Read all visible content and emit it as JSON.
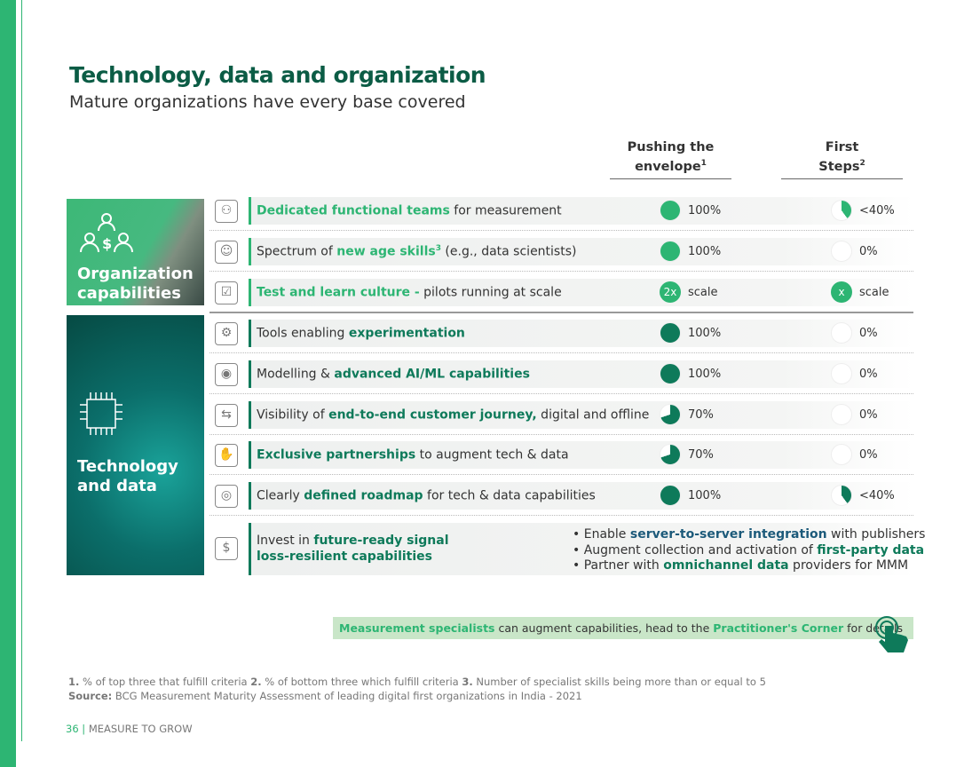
{
  "title": "Technology, data and organization",
  "subtitle": "Mature organizations have every base covered",
  "columns": {
    "col1": "Pushing the",
    "col1b": "envelope",
    "col1sup": "1",
    "col2": "First",
    "col2b": "Steps",
    "col2sup": "2"
  },
  "panels": {
    "org_1": "Organization",
    "org_2": "capabilities",
    "tech_1": "Technology",
    "tech_2": "and data"
  },
  "rows": [
    {
      "icon": "team-icon",
      "pre": "",
      "hl": "Dedicated functional teams",
      "post": " for measurement",
      "sup": "",
      "post2": "",
      "v1": "100%",
      "p1": 100,
      "v2": "<40%",
      "p2": 40,
      "section": "org"
    },
    {
      "icon": "brain-head-icon",
      "pre": "Spectrum of ",
      "hl": "new age skills",
      "sup": "3",
      "post": "",
      "post2": " (e.g., data scientists)",
      "v1": "100%",
      "p1": 100,
      "v2": "0%",
      "p2": 0,
      "section": "org"
    },
    {
      "icon": "clipboard-checklist-icon",
      "pre": "",
      "hl": "Test and learn culture -",
      "post": " pilots running at scale",
      "sup": "",
      "post2": "",
      "chip1": "2x",
      "v1": "scale",
      "chip2": "x",
      "v2": "scale",
      "section": "org"
    },
    {
      "icon": "experiment-gear-icon",
      "pre": "Tools enabling ",
      "hl": "experimentation",
      "post": "",
      "sup": "",
      "post2": "",
      "v1": "100%",
      "p1": 100,
      "v2": "0%",
      "p2": 0,
      "section": "tech"
    },
    {
      "icon": "eye-monitor-icon",
      "pre": "Modelling & ",
      "hl": "advanced AI/ML capabilities",
      "post": "",
      "sup": "",
      "post2": "",
      "v1": "100%",
      "p1": 100,
      "v2": "0%",
      "p2": 0,
      "section": "tech"
    },
    {
      "icon": "customer-journey-icon",
      "pre": "Visibility of ",
      "hl": "end-to-end customer journey,",
      "post": " digital and offline",
      "sup": "",
      "post2": "",
      "v1": "70%",
      "p1": 70,
      "v2": "0%",
      "p2": 0,
      "section": "tech"
    },
    {
      "icon": "handshake-icon",
      "pre": "",
      "hl": "Exclusive partnerships",
      "post": " to augment tech & data",
      "sup": "",
      "post2": "",
      "v1": "70%",
      "p1": 70,
      "v2": "0%",
      "p2": 0,
      "section": "tech"
    },
    {
      "icon": "roadmap-icon",
      "pre": "Clearly ",
      "hl": "defined roadmap",
      "post": " for tech & data capabilities",
      "sup": "",
      "post2": "",
      "v1": "100%",
      "p1": 100,
      "v2": "<40%",
      "p2": 40,
      "section": "tech"
    }
  ],
  "last_row": {
    "pre": "Invest in ",
    "hl1": "future-ready signal",
    "hl2": "loss-resilient capabilities",
    "bullets": [
      {
        "pre": "Enable ",
        "hl": "server-to-server integration",
        "post": " with publishers"
      },
      {
        "pre": "Augment collection and activation of ",
        "hl": "first-party data",
        "post": ""
      },
      {
        "pre": "Partner with ",
        "hl": "omnichannel data",
        "post": " providers for MMM"
      }
    ]
  },
  "callout": {
    "hl1": "Measurement specialists",
    "mid": " can augment capabilities, head to the ",
    "hl2": "Practitioner's Corner",
    "post": " for details"
  },
  "footnotes": {
    "n1": "1.",
    "t1": " % of top three that fulfill criteria ",
    "n2": "2.",
    "t2": " % of bottom three which fulfill criteria ",
    "n3": "3.",
    "t3": " Number of specialist skills being more than or equal to 5",
    "src_label": "Source:",
    "src": " BCG Measurement Maturity Assessment of leading digital first organizations in India - 2021"
  },
  "page": {
    "number": "36",
    "label": "MEASURE TO GROW"
  },
  "colors": {
    "light_green": "#2db573",
    "dark_green": "#0e7a5a",
    "title": "#0b5c45"
  }
}
